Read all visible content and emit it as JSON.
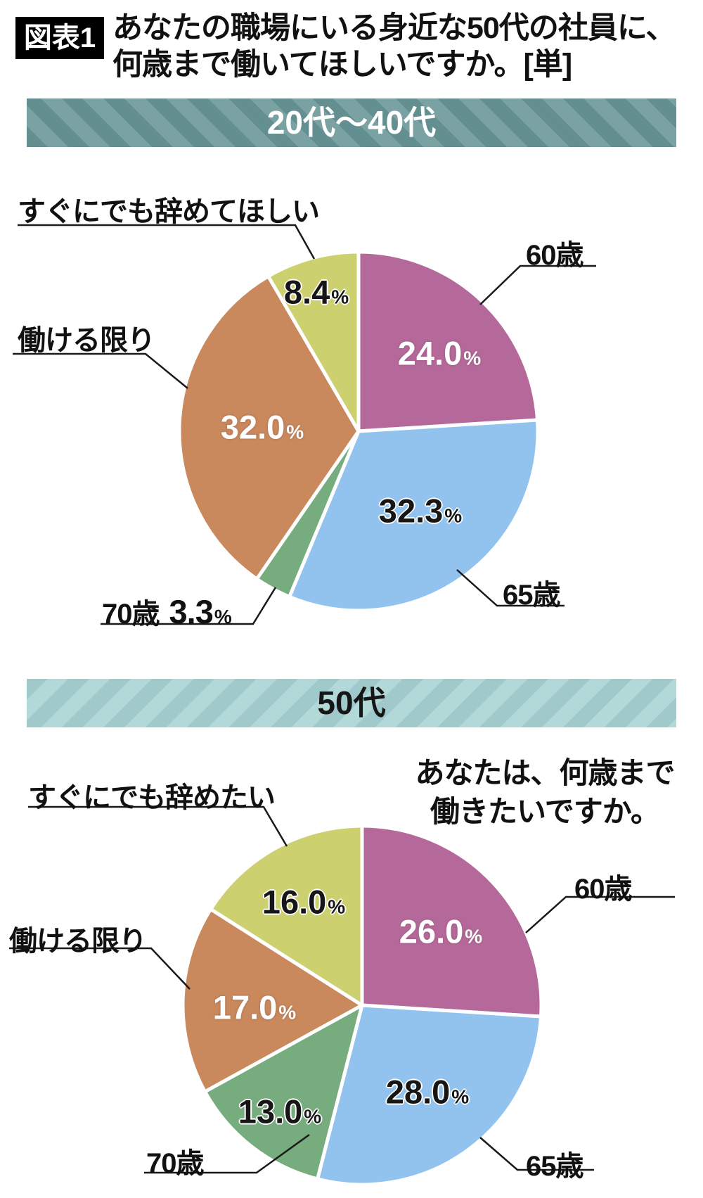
{
  "header": {
    "tag": "図表1",
    "title_lines": [
      "あなたの職場にいる身近な50代の社員に、",
      "何歳まで働いてほしいですか。[単]"
    ]
  },
  "chart_data": [
    {
      "type": "pie",
      "group_label": "20代〜40代",
      "question_lines": [],
      "start_angle_deg": 0,
      "direction": "clockwise",
      "value_suffix": "%",
      "slices": [
        {
          "label": "60歳",
          "value": 24.0,
          "color": "#b5699a",
          "value_placement": "inside",
          "value_text": "light"
        },
        {
          "label": "65歳",
          "value": 32.3,
          "color": "#92c2ee",
          "value_placement": "inside",
          "value_text": "dark"
        },
        {
          "label": "70歳",
          "value": 3.3,
          "color": "#76ac7e",
          "value_placement": "outside",
          "value_text": "dark"
        },
        {
          "label": "働ける限り",
          "value": 32.0,
          "color": "#c9895d",
          "value_placement": "inside",
          "value_text": "light"
        },
        {
          "label": "すぐにでも辞めてほしい",
          "value": 8.4,
          "color": "#ccd06f",
          "value_placement": "inside",
          "value_text": "dark"
        }
      ]
    },
    {
      "type": "pie",
      "group_label": "50代",
      "question_lines": [
        "あなたは、何歳まで",
        "働きたいですか。"
      ],
      "start_angle_deg": 0,
      "direction": "clockwise",
      "value_suffix": "%",
      "slices": [
        {
          "label": "60歳",
          "value": 26.0,
          "color": "#b5699a",
          "value_placement": "inside",
          "value_text": "light"
        },
        {
          "label": "65歳",
          "value": 28.0,
          "color": "#92c2ee",
          "value_placement": "inside",
          "value_text": "dark"
        },
        {
          "label": "70歳",
          "value": 13.0,
          "color": "#76ac7e",
          "value_placement": "inside",
          "value_text": "dark"
        },
        {
          "label": "働ける限り",
          "value": 17.0,
          "color": "#c9895d",
          "value_placement": "inside",
          "value_text": "light"
        },
        {
          "label": "すぐにでも辞めたい",
          "value": 16.0,
          "color": "#ccd06f",
          "value_placement": "inside",
          "value_text": "dark"
        }
      ]
    }
  ],
  "colors": {
    "banner1_stripe_dark": "#648f91",
    "banner1_stripe_light": "#7aa2a3",
    "banner2_stripe_dark": "#9fc9cb",
    "banner2_stripe_light": "#b2d8d8",
    "leader_line": "#1a1a1a",
    "slice_gap": "#ffffff"
  }
}
